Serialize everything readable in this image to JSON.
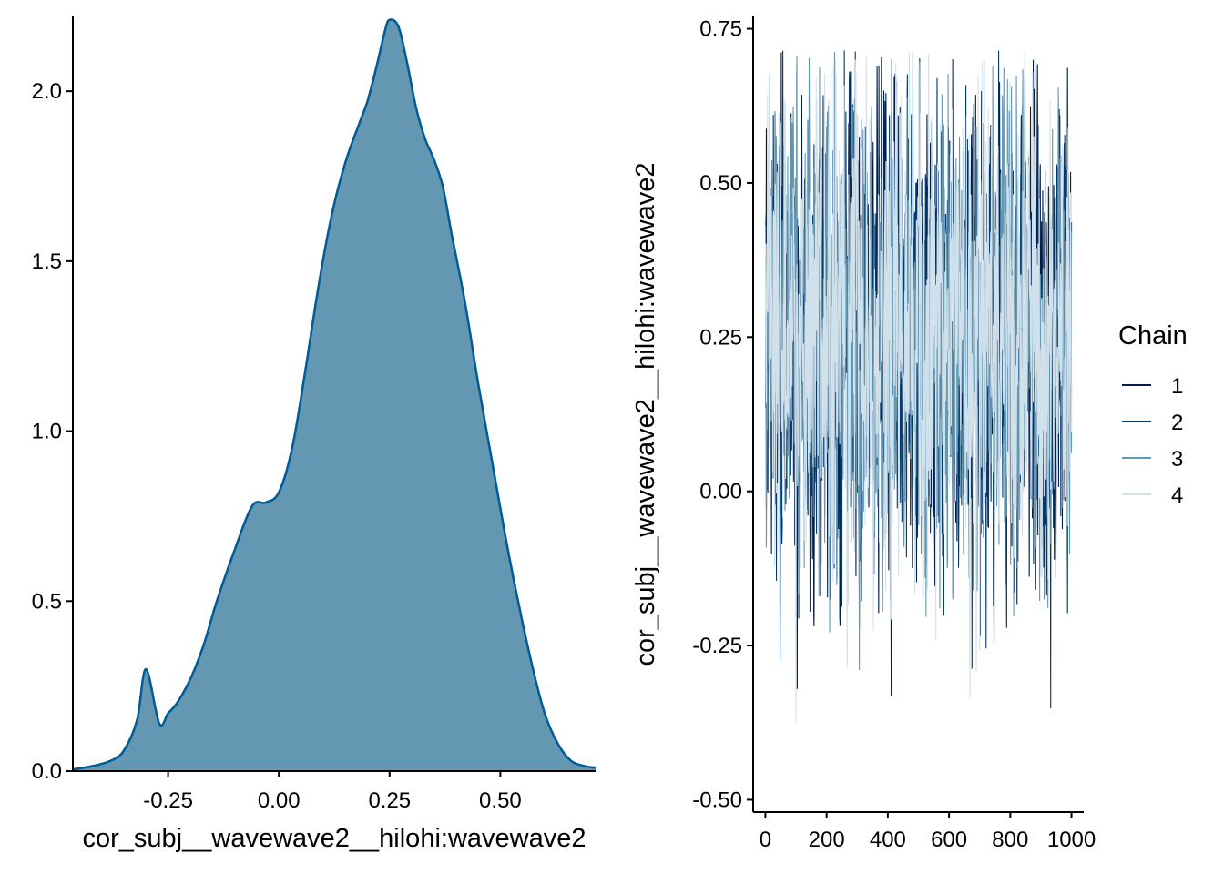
{
  "chart_data": [
    {
      "type": "area",
      "xlabel": "cor_subj__wavewave2__hilohi:wavewave2",
      "ylabel": "",
      "xlim": [
        -0.465,
        0.715
      ],
      "ylim": [
        0,
        2.22
      ],
      "x_ticks": [
        -0.25,
        0.0,
        0.25,
        0.5
      ],
      "x_tick_labels": [
        "-0.25",
        "0.00",
        "0.25",
        "0.50"
      ],
      "y_ticks": [
        0.0,
        0.5,
        1.0,
        1.5,
        2.0
      ],
      "y_tick_labels": [
        "0.0",
        "0.5",
        "1.0",
        "1.5",
        "2.0"
      ],
      "fill_color": "#6497b1",
      "line_color": "#005b96",
      "grid": false,
      "x": [
        -0.465,
        -0.42,
        -0.38,
        -0.35,
        -0.32,
        -0.3,
        -0.27,
        -0.25,
        -0.23,
        -0.2,
        -0.17,
        -0.14,
        -0.1,
        -0.06,
        -0.03,
        0.0,
        0.03,
        0.06,
        0.09,
        0.12,
        0.15,
        0.18,
        0.2,
        0.22,
        0.24,
        0.25,
        0.27,
        0.29,
        0.31,
        0.33,
        0.35,
        0.37,
        0.39,
        0.42,
        0.45,
        0.48,
        0.51,
        0.54,
        0.57,
        0.6,
        0.63,
        0.66,
        0.69,
        0.715
      ],
      "values": [
        0.005,
        0.015,
        0.03,
        0.06,
        0.15,
        0.3,
        0.14,
        0.17,
        0.2,
        0.27,
        0.37,
        0.5,
        0.65,
        0.78,
        0.79,
        0.82,
        0.95,
        1.18,
        1.43,
        1.64,
        1.79,
        1.9,
        1.97,
        2.07,
        2.18,
        2.21,
        2.19,
        2.08,
        1.95,
        1.86,
        1.8,
        1.72,
        1.58,
        1.38,
        1.14,
        0.92,
        0.7,
        0.5,
        0.32,
        0.17,
        0.08,
        0.03,
        0.015,
        0.01
      ]
    },
    {
      "type": "line",
      "xlabel": "",
      "ylabel": "cor_subj__wavewave2__hilohi:wavewave2",
      "xlim": [
        -40,
        1040
      ],
      "ylim": [
        -0.52,
        0.77
      ],
      "x_ticks": [
        0,
        200,
        400,
        600,
        800,
        1000
      ],
      "x_tick_labels": [
        "0",
        "200",
        "400",
        "600",
        "800",
        "1000"
      ],
      "y_ticks": [
        -0.5,
        -0.25,
        0.0,
        0.25,
        0.5,
        0.75
      ],
      "y_tick_labels": [
        "-0.50",
        "-0.25",
        "0.00",
        "0.25",
        "0.50",
        "0.75"
      ],
      "grid": false,
      "legend": {
        "title": "Chain",
        "position": "right",
        "entries": [
          {
            "label": "1",
            "color": "#011f4b"
          },
          {
            "label": "2",
            "color": "#03396c"
          },
          {
            "label": "3",
            "color": "#6497b1"
          },
          {
            "label": "4",
            "color": "#d1e1ec"
          }
        ]
      },
      "iterations": 1000,
      "series_summary": {
        "approx_mean": 0.25,
        "approx_sd": 0.18,
        "observed_min": -0.47,
        "observed_max": 0.715
      }
    }
  ]
}
